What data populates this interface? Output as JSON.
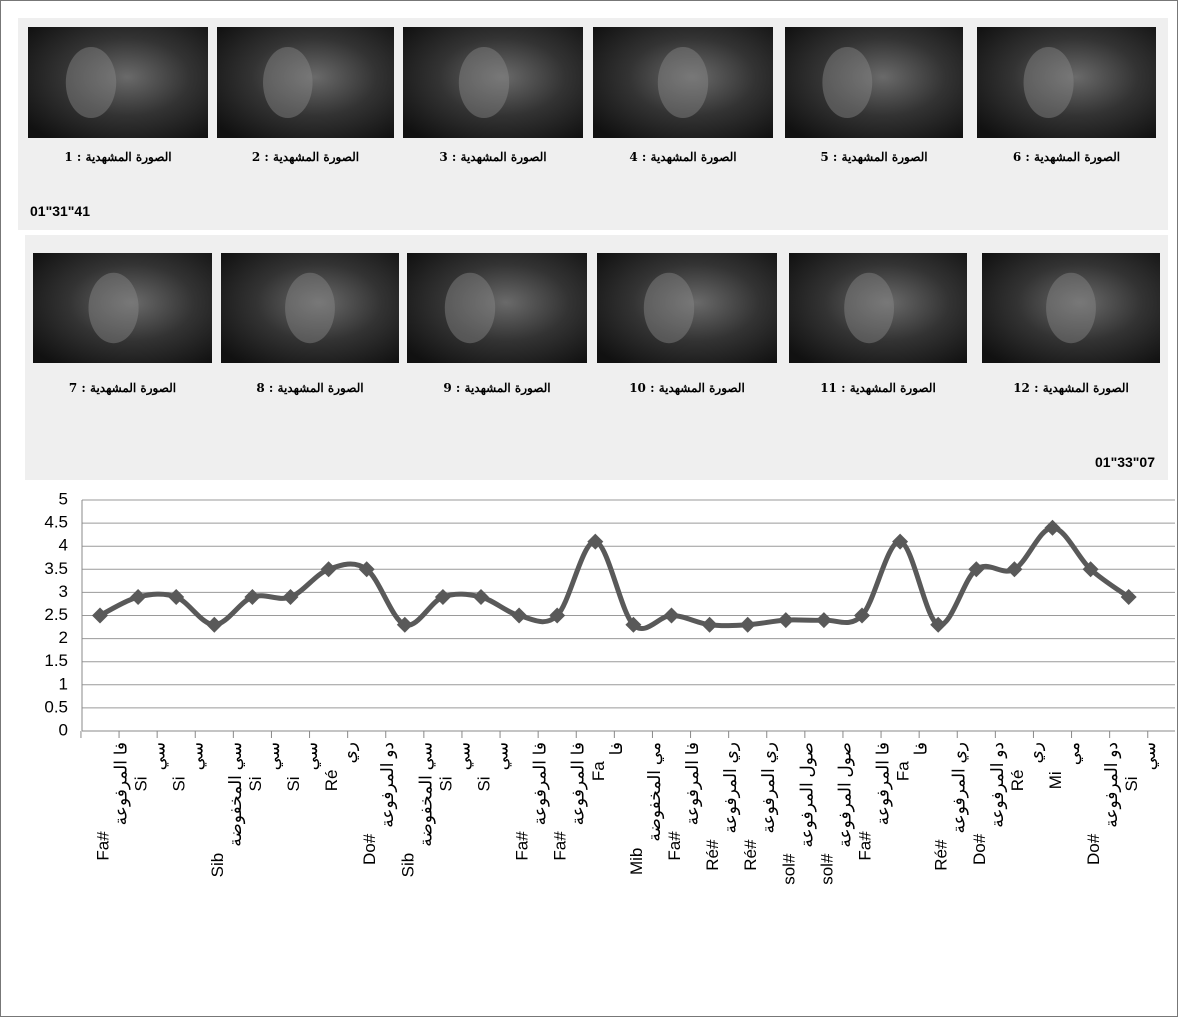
{
  "frames": [
    {
      "caption": "الصورة المشهدية : 1"
    },
    {
      "caption": "الصورة المشهدية : 2"
    },
    {
      "caption": "الصورة المشهدية : 3"
    },
    {
      "caption": "الصورة المشهدية : 4"
    },
    {
      "caption": "الصورة المشهدية : 5"
    },
    {
      "caption": "الصورة المشهدية : 6"
    },
    {
      "caption": "الصورة المشهدية : 7"
    },
    {
      "caption": "الصورة المشهدية : 8"
    },
    {
      "caption": "الصورة المشهدية : 9"
    },
    {
      "caption": "الصورة المشهدية : 10"
    },
    {
      "caption": "الصورة المشهدية : 11"
    },
    {
      "caption": "الصورة المشهدية : 12"
    }
  ],
  "timestamps": [
    "01\"31\"41",
    "01\"33\"07"
  ],
  "chart_data": {
    "type": "line",
    "categories": [
      [
        "Fa#",
        "فا المرفوعة"
      ],
      [
        "Si",
        "سي"
      ],
      [
        "Si",
        "سي"
      ],
      [
        "Sib",
        "سي المخفوضة"
      ],
      [
        "Si",
        "سي"
      ],
      [
        "Si",
        "سي"
      ],
      [
        "Ré",
        "ري"
      ],
      [
        "Do#",
        "دو المرفوعة"
      ],
      [
        "Sib",
        "سي المخفوضة"
      ],
      [
        "Si",
        "سي"
      ],
      [
        "Si",
        "سي"
      ],
      [
        "Fa#",
        "فا المرفوعة"
      ],
      [
        "Fa#",
        "فا المرفوعة"
      ],
      [
        "Fa",
        "فا"
      ],
      [
        "Mib",
        "مي المخفوضة"
      ],
      [
        "Fa#",
        "فا المرفوعة"
      ],
      [
        "Ré#",
        "ري المرفوعة"
      ],
      [
        "Ré#",
        "ري المرفوعة"
      ],
      [
        "sol#",
        "صول المرفوعة"
      ],
      [
        "sol#",
        "صول المرفوعة"
      ],
      [
        "Fa#",
        "فا المرفوعة"
      ],
      [
        "Fa",
        "فا"
      ],
      [
        "Ré#",
        "ري المرفوعة"
      ],
      [
        "Do#",
        "دو المرفوعة"
      ],
      [
        "Ré",
        "ري"
      ],
      [
        "Mi",
        "مي"
      ],
      [
        "Do#",
        "دو المرفوعة"
      ],
      [
        "Si",
        "سي"
      ]
    ],
    "values": [
      2.5,
      2.9,
      2.9,
      2.3,
      2.9,
      2.9,
      3.5,
      3.5,
      2.3,
      2.9,
      2.9,
      2.5,
      2.5,
      4.1,
      2.3,
      2.5,
      2.3,
      2.3,
      2.4,
      2.4,
      2.5,
      4.1,
      2.3,
      3.5,
      3.5,
      4.4,
      3.5,
      2.9
    ],
    "color": "#595959",
    "ylim": [
      0,
      5
    ],
    "yticks": [
      0,
      0.5,
      1,
      1.5,
      2,
      2.5,
      3,
      3.5,
      4,
      4.5,
      5
    ],
    "grid": true
  }
}
